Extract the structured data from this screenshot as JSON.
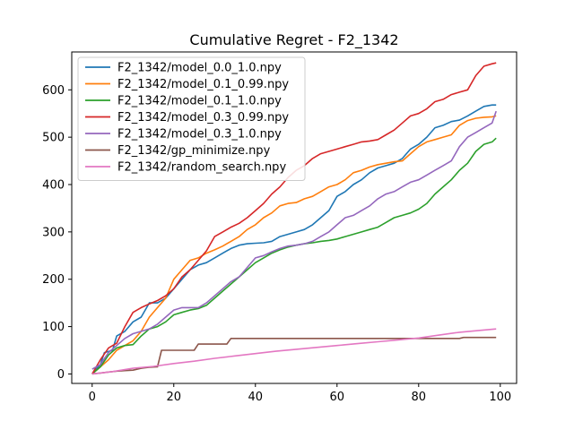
{
  "chart_data": {
    "type": "line",
    "title": "Cumulative Regret - F2_1342",
    "xlabel": "",
    "ylabel": "",
    "xlim": [
      -5,
      104
    ],
    "ylim": [
      -20,
      680
    ],
    "xticks": [
      0,
      20,
      40,
      60,
      80,
      100
    ],
    "yticks": [
      0,
      100,
      200,
      300,
      400,
      500,
      600
    ],
    "grid": false,
    "legend_position": "top-left",
    "series": [
      {
        "name": "F2_1342/model_0.0_1.0.npy",
        "color": "#1f77b4",
        "points": [
          [
            0,
            0
          ],
          [
            2,
            20
          ],
          [
            3,
            45
          ],
          [
            5,
            50
          ],
          [
            6,
            80
          ],
          [
            8,
            90
          ],
          [
            10,
            110
          ],
          [
            12,
            120
          ],
          [
            14,
            150
          ],
          [
            16,
            150
          ],
          [
            18,
            160
          ],
          [
            20,
            180
          ],
          [
            22,
            200
          ],
          [
            24,
            220
          ],
          [
            26,
            230
          ],
          [
            28,
            235
          ],
          [
            30,
            245
          ],
          [
            32,
            255
          ],
          [
            34,
            265
          ],
          [
            36,
            272
          ],
          [
            38,
            275
          ],
          [
            40,
            276
          ],
          [
            42,
            277
          ],
          [
            44,
            280
          ],
          [
            46,
            290
          ],
          [
            48,
            295
          ],
          [
            50,
            300
          ],
          [
            52,
            305
          ],
          [
            54,
            315
          ],
          [
            56,
            330
          ],
          [
            58,
            345
          ],
          [
            60,
            375
          ],
          [
            62,
            385
          ],
          [
            64,
            400
          ],
          [
            66,
            410
          ],
          [
            68,
            425
          ],
          [
            70,
            435
          ],
          [
            72,
            440
          ],
          [
            74,
            445
          ],
          [
            76,
            455
          ],
          [
            78,
            475
          ],
          [
            80,
            485
          ],
          [
            82,
            500
          ],
          [
            84,
            520
          ],
          [
            86,
            525
          ],
          [
            88,
            533
          ],
          [
            90,
            536
          ],
          [
            92,
            545
          ],
          [
            94,
            555
          ],
          [
            96,
            565
          ],
          [
            98,
            568
          ],
          [
            99,
            568
          ]
        ]
      },
      {
        "name": "F2_1342/model_0.1_0.99.npy",
        "color": "#ff7f0e",
        "points": [
          [
            0,
            0
          ],
          [
            2,
            15
          ],
          [
            4,
            30
          ],
          [
            6,
            50
          ],
          [
            8,
            60
          ],
          [
            10,
            70
          ],
          [
            12,
            90
          ],
          [
            14,
            120
          ],
          [
            16,
            140
          ],
          [
            18,
            160
          ],
          [
            20,
            200
          ],
          [
            22,
            220
          ],
          [
            24,
            240
          ],
          [
            26,
            245
          ],
          [
            28,
            255
          ],
          [
            30,
            262
          ],
          [
            32,
            270
          ],
          [
            34,
            280
          ],
          [
            36,
            290
          ],
          [
            38,
            305
          ],
          [
            40,
            315
          ],
          [
            42,
            330
          ],
          [
            44,
            340
          ],
          [
            46,
            355
          ],
          [
            48,
            360
          ],
          [
            50,
            362
          ],
          [
            52,
            370
          ],
          [
            54,
            375
          ],
          [
            56,
            385
          ],
          [
            58,
            395
          ],
          [
            60,
            400
          ],
          [
            62,
            410
          ],
          [
            64,
            425
          ],
          [
            66,
            430
          ],
          [
            68,
            437
          ],
          [
            70,
            442
          ],
          [
            72,
            445
          ],
          [
            74,
            448
          ],
          [
            76,
            450
          ],
          [
            78,
            465
          ],
          [
            80,
            480
          ],
          [
            82,
            490
          ],
          [
            84,
            495
          ],
          [
            86,
            500
          ],
          [
            88,
            505
          ],
          [
            90,
            525
          ],
          [
            92,
            535
          ],
          [
            94,
            540
          ],
          [
            96,
            542
          ],
          [
            98,
            543
          ],
          [
            99,
            545
          ]
        ]
      },
      {
        "name": "F2_1342/model_0.1_1.0.npy",
        "color": "#2ca02c",
        "points": [
          [
            0,
            0
          ],
          [
            2,
            15
          ],
          [
            4,
            40
          ],
          [
            6,
            55
          ],
          [
            8,
            60
          ],
          [
            10,
            62
          ],
          [
            12,
            80
          ],
          [
            14,
            95
          ],
          [
            16,
            100
          ],
          [
            18,
            110
          ],
          [
            20,
            125
          ],
          [
            22,
            130
          ],
          [
            24,
            135
          ],
          [
            26,
            138
          ],
          [
            28,
            145
          ],
          [
            30,
            160
          ],
          [
            32,
            175
          ],
          [
            34,
            190
          ],
          [
            36,
            205
          ],
          [
            38,
            220
          ],
          [
            40,
            235
          ],
          [
            42,
            245
          ],
          [
            44,
            255
          ],
          [
            46,
            262
          ],
          [
            48,
            268
          ],
          [
            50,
            272
          ],
          [
            52,
            275
          ],
          [
            54,
            277
          ],
          [
            56,
            280
          ],
          [
            58,
            282
          ],
          [
            60,
            285
          ],
          [
            62,
            290
          ],
          [
            64,
            295
          ],
          [
            66,
            300
          ],
          [
            68,
            305
          ],
          [
            70,
            310
          ],
          [
            72,
            320
          ],
          [
            74,
            330
          ],
          [
            76,
            335
          ],
          [
            78,
            340
          ],
          [
            80,
            348
          ],
          [
            82,
            360
          ],
          [
            84,
            380
          ],
          [
            86,
            395
          ],
          [
            88,
            410
          ],
          [
            90,
            430
          ],
          [
            92,
            445
          ],
          [
            94,
            470
          ],
          [
            96,
            485
          ],
          [
            98,
            490
          ],
          [
            99,
            498
          ]
        ]
      },
      {
        "name": "F2_1342/model_0.3_0.99.npy",
        "color": "#d62728",
        "points": [
          [
            0,
            0
          ],
          [
            2,
            30
          ],
          [
            4,
            55
          ],
          [
            6,
            65
          ],
          [
            8,
            100
          ],
          [
            10,
            130
          ],
          [
            12,
            140
          ],
          [
            14,
            148
          ],
          [
            16,
            155
          ],
          [
            18,
            165
          ],
          [
            20,
            180
          ],
          [
            22,
            205
          ],
          [
            24,
            220
          ],
          [
            26,
            240
          ],
          [
            28,
            260
          ],
          [
            30,
            290
          ],
          [
            32,
            300
          ],
          [
            34,
            310
          ],
          [
            36,
            318
          ],
          [
            38,
            330
          ],
          [
            40,
            345
          ],
          [
            42,
            360
          ],
          [
            44,
            380
          ],
          [
            46,
            395
          ],
          [
            48,
            415
          ],
          [
            50,
            430
          ],
          [
            52,
            440
          ],
          [
            54,
            455
          ],
          [
            56,
            465
          ],
          [
            58,
            470
          ],
          [
            60,
            475
          ],
          [
            62,
            480
          ],
          [
            64,
            485
          ],
          [
            66,
            490
          ],
          [
            68,
            492
          ],
          [
            70,
            495
          ],
          [
            72,
            505
          ],
          [
            74,
            515
          ],
          [
            76,
            530
          ],
          [
            78,
            545
          ],
          [
            80,
            550
          ],
          [
            82,
            560
          ],
          [
            84,
            575
          ],
          [
            86,
            580
          ],
          [
            88,
            590
          ],
          [
            90,
            595
          ],
          [
            92,
            600
          ],
          [
            94,
            630
          ],
          [
            96,
            650
          ],
          [
            98,
            655
          ],
          [
            99,
            657
          ]
        ]
      },
      {
        "name": "F2_1342/model_0.3_1.0.npy",
        "color": "#9467bd",
        "points": [
          [
            0,
            10
          ],
          [
            2,
            20
          ],
          [
            4,
            45
          ],
          [
            6,
            60
          ],
          [
            8,
            75
          ],
          [
            10,
            85
          ],
          [
            12,
            90
          ],
          [
            14,
            95
          ],
          [
            16,
            105
          ],
          [
            18,
            120
          ],
          [
            20,
            135
          ],
          [
            22,
            140
          ],
          [
            24,
            140
          ],
          [
            26,
            140
          ],
          [
            28,
            150
          ],
          [
            30,
            165
          ],
          [
            32,
            180
          ],
          [
            34,
            195
          ],
          [
            36,
            205
          ],
          [
            38,
            225
          ],
          [
            40,
            245
          ],
          [
            42,
            250
          ],
          [
            44,
            258
          ],
          [
            46,
            265
          ],
          [
            48,
            270
          ],
          [
            50,
            272
          ],
          [
            52,
            275
          ],
          [
            54,
            280
          ],
          [
            56,
            290
          ],
          [
            58,
            300
          ],
          [
            60,
            315
          ],
          [
            62,
            330
          ],
          [
            64,
            335
          ],
          [
            66,
            345
          ],
          [
            68,
            355
          ],
          [
            70,
            370
          ],
          [
            72,
            380
          ],
          [
            74,
            385
          ],
          [
            76,
            395
          ],
          [
            78,
            405
          ],
          [
            80,
            410
          ],
          [
            82,
            420
          ],
          [
            84,
            430
          ],
          [
            86,
            440
          ],
          [
            88,
            450
          ],
          [
            90,
            480
          ],
          [
            92,
            500
          ],
          [
            94,
            510
          ],
          [
            96,
            520
          ],
          [
            98,
            530
          ],
          [
            99,
            555
          ]
        ]
      },
      {
        "name": "F2_1342/gp_minimize.npy",
        "color": "#8c564b",
        "points": [
          [
            0,
            0
          ],
          [
            2,
            2
          ],
          [
            4,
            4
          ],
          [
            6,
            6
          ],
          [
            8,
            7
          ],
          [
            10,
            8
          ],
          [
            12,
            12
          ],
          [
            14,
            14
          ],
          [
            16,
            15
          ],
          [
            17,
            50
          ],
          [
            19,
            50
          ],
          [
            21,
            50
          ],
          [
            23,
            50
          ],
          [
            25,
            50
          ],
          [
            26,
            63
          ],
          [
            28,
            63
          ],
          [
            30,
            63
          ],
          [
            32,
            63
          ],
          [
            33,
            63
          ],
          [
            34,
            75
          ],
          [
            36,
            75
          ],
          [
            40,
            75
          ],
          [
            50,
            75
          ],
          [
            60,
            75
          ],
          [
            70,
            75
          ],
          [
            80,
            75
          ],
          [
            90,
            75
          ],
          [
            91,
            77
          ],
          [
            95,
            77
          ],
          [
            99,
            77
          ]
        ]
      },
      {
        "name": "F2_1342/random_search.npy",
        "color": "#e377c2",
        "points": [
          [
            0,
            0
          ],
          [
            5,
            5
          ],
          [
            10,
            12
          ],
          [
            15,
            16
          ],
          [
            20,
            22
          ],
          [
            25,
            27
          ],
          [
            30,
            33
          ],
          [
            35,
            38
          ],
          [
            40,
            43
          ],
          [
            45,
            48
          ],
          [
            50,
            52
          ],
          [
            55,
            56
          ],
          [
            60,
            60
          ],
          [
            65,
            64
          ],
          [
            70,
            68
          ],
          [
            75,
            72
          ],
          [
            80,
            76
          ],
          [
            85,
            82
          ],
          [
            90,
            88
          ],
          [
            95,
            92
          ],
          [
            99,
            95
          ]
        ]
      }
    ]
  }
}
